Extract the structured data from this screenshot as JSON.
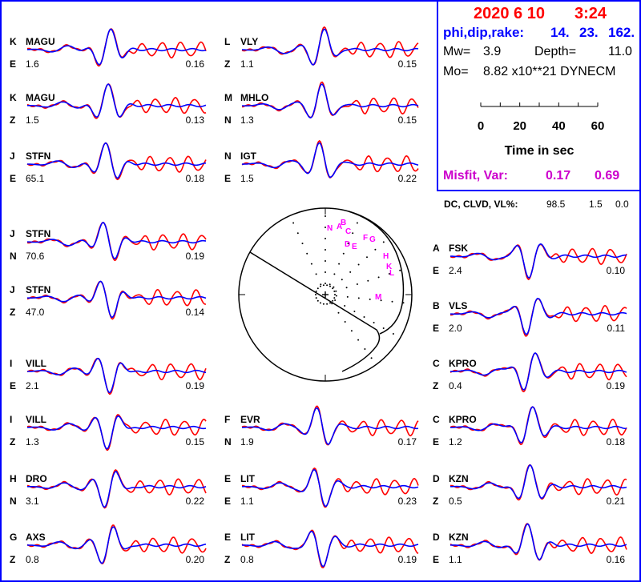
{
  "header": {
    "date": "2020  6 10",
    "time": "3:24",
    "phi_dip_rake_label": "phi,dip,rake:",
    "phi": "14.",
    "dip": "23.",
    "rake": "162.",
    "mw_label": "Mw=",
    "mw": "3.9",
    "depth_label": "Depth=",
    "depth": "11.0",
    "mo_label": "Mo=",
    "mo": "8.82 x10**21 DYNECM",
    "misfit_label": "Misfit, Var:",
    "misfit": "0.17",
    "var": "0.69",
    "dc_label": "DC, CLVD, VL%:",
    "dc": "98.5",
    "clvd": "1.5",
    "vl": "0.0"
  },
  "time_scale": {
    "ticks": [
      "0",
      "20",
      "40",
      "60"
    ],
    "label": "Time  in sec"
  },
  "colors": {
    "observed": "#ff0000",
    "synthetic": "#0000ff",
    "beachball_stations": "#ff00ff",
    "border": "#0000ff"
  },
  "chart_data": {
    "type": "line",
    "description_series": [
      "observed",
      "synthetic"
    ],
    "traces": [
      {
        "letter": "K",
        "station": "MAGU",
        "component": "E",
        "max_amp": "1.6",
        "var": "0.16"
      },
      {
        "letter": "K",
        "station": "MAGU",
        "component": "Z",
        "max_amp": "1.5",
        "var": "0.13"
      },
      {
        "letter": "J",
        "station": "STFN",
        "component": "E",
        "max_amp": "65.1",
        "var": "0.18"
      },
      {
        "letter": "J",
        "station": "STFN",
        "component": "N",
        "max_amp": "70.6",
        "var": "0.19"
      },
      {
        "letter": "J",
        "station": "STFN",
        "component": "Z",
        "max_amp": "47.0",
        "var": "0.14"
      },
      {
        "letter": "I",
        "station": "VILL",
        "component": "E",
        "max_amp": "2.1",
        "var": "0.19"
      },
      {
        "letter": "I",
        "station": "VILL",
        "component": "Z",
        "max_amp": "1.3",
        "var": "0.15"
      },
      {
        "letter": "H",
        "station": "DRO",
        "component": "N",
        "max_amp": "3.1",
        "var": "0.22"
      },
      {
        "letter": "G",
        "station": "AXS",
        "component": "Z",
        "max_amp": "0.8",
        "var": "0.20"
      },
      {
        "letter": "L",
        "station": "VLY",
        "component": "Z",
        "max_amp": "1.1",
        "var": "0.15"
      },
      {
        "letter": "M",
        "station": "MHLO",
        "component": "N",
        "max_amp": "1.3",
        "var": "0.15"
      },
      {
        "letter": "N",
        "station": "IGT",
        "component": "E",
        "max_amp": "1.5",
        "var": "0.22"
      },
      {
        "letter": "F",
        "station": "EVR",
        "component": "N",
        "max_amp": "1.9",
        "var": "0.17"
      },
      {
        "letter": "E",
        "station": "LIT",
        "component": "E",
        "max_amp": "1.1",
        "var": "0.23"
      },
      {
        "letter": "E",
        "station": "LIT",
        "component": "Z",
        "max_amp": "0.8",
        "var": "0.19"
      },
      {
        "letter": "A",
        "station": "FSK",
        "component": "E",
        "max_amp": "2.4",
        "var": "0.10"
      },
      {
        "letter": "B",
        "station": "VLS",
        "component": "E",
        "max_amp": "2.0",
        "var": "0.11"
      },
      {
        "letter": "C",
        "station": "KPRO",
        "component": "Z",
        "max_amp": "0.4",
        "var": "0.19"
      },
      {
        "letter": "C",
        "station": "KPRO",
        "component": "E",
        "max_amp": "1.2",
        "var": "0.18"
      },
      {
        "letter": "D",
        "station": "KZN",
        "component": "Z",
        "max_amp": "0.5",
        "var": "0.21"
      },
      {
        "letter": "D",
        "station": "KZN",
        "component": "E",
        "max_amp": "1.1",
        "var": "0.16"
      }
    ],
    "beachball_labels": [
      "N",
      "A",
      "B",
      "C",
      "D",
      "E",
      "F",
      "G",
      "H",
      "K",
      "L",
      "M"
    ]
  }
}
